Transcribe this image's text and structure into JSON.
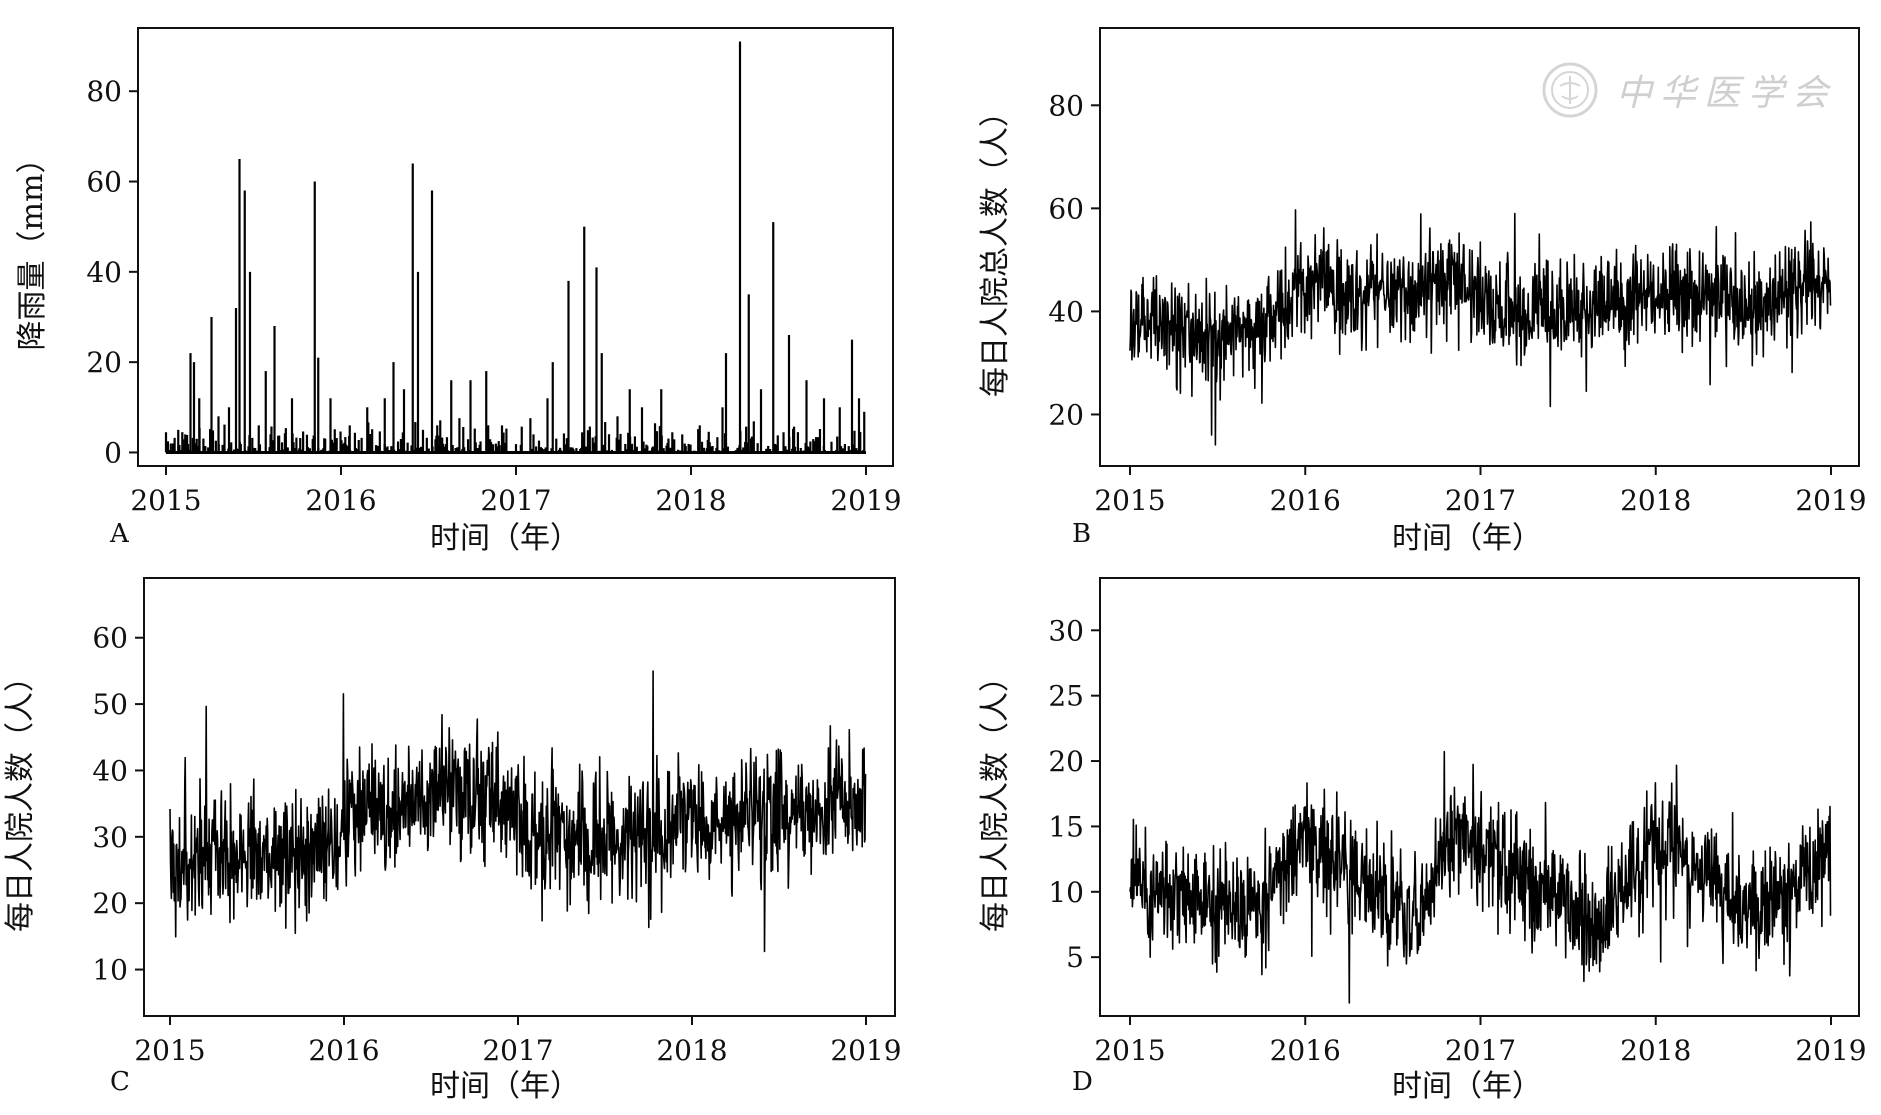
{
  "watermark": {
    "text": "中华医学会"
  },
  "chart_data": [
    {
      "panel": "A",
      "type": "line",
      "ylabel": "降雨量（mm）",
      "xlabel": "时间（年）",
      "x_ticks": [
        "2015",
        "2016",
        "2017",
        "2018",
        "2019"
      ],
      "y_ticks": [
        0,
        20,
        40,
        60,
        80
      ],
      "xlim": [
        2015,
        2019
      ],
      "ylim": [
        -3,
        94
      ],
      "series": [
        {
          "values": [
            [
              2015.04,
              2
            ],
            [
              2015.07,
              5
            ],
            [
              2015.11,
              4
            ],
            [
              2015.14,
              22
            ],
            [
              2015.16,
              20
            ],
            [
              2015.19,
              12
            ],
            [
              2015.26,
              30
            ],
            [
              2015.3,
              8
            ],
            [
              2015.36,
              10
            ],
            [
              2015.4,
              32
            ],
            [
              2015.42,
              65
            ],
            [
              2015.45,
              58
            ],
            [
              2015.48,
              40
            ],
            [
              2015.53,
              6
            ],
            [
              2015.57,
              18
            ],
            [
              2015.62,
              28
            ],
            [
              2015.72,
              12
            ],
            [
              2015.85,
              60
            ],
            [
              2015.87,
              21
            ],
            [
              2015.94,
              12
            ],
            [
              2016.05,
              6
            ],
            [
              2016.15,
              10
            ],
            [
              2016.25,
              12
            ],
            [
              2016.3,
              20
            ],
            [
              2016.36,
              14
            ],
            [
              2016.41,
              64
            ],
            [
              2016.44,
              40
            ],
            [
              2016.52,
              58
            ],
            [
              2016.55,
              6
            ],
            [
              2016.63,
              16
            ],
            [
              2016.74,
              16
            ],
            [
              2016.83,
              18
            ],
            [
              2016.92,
              6
            ],
            [
              2017.1,
              4
            ],
            [
              2017.18,
              12
            ],
            [
              2017.21,
              20
            ],
            [
              2017.3,
              38
            ],
            [
              2017.39,
              50
            ],
            [
              2017.46,
              41
            ],
            [
              2017.49,
              22
            ],
            [
              2017.58,
              8
            ],
            [
              2017.65,
              14
            ],
            [
              2017.72,
              10
            ],
            [
              2017.83,
              14
            ],
            [
              2017.95,
              4
            ],
            [
              2018.05,
              6
            ],
            [
              2018.18,
              10
            ],
            [
              2018.2,
              22
            ],
            [
              2018.28,
              91
            ],
            [
              2018.33,
              35
            ],
            [
              2018.4,
              14
            ],
            [
              2018.47,
              51
            ],
            [
              2018.56,
              26
            ],
            [
              2018.66,
              16
            ],
            [
              2018.76,
              12
            ],
            [
              2018.85,
              10
            ],
            [
              2018.92,
              25
            ],
            [
              2018.96,
              12
            ],
            [
              2018.99,
              9
            ]
          ]
        }
      ]
    },
    {
      "panel": "B",
      "type": "line",
      "ylabel": "每日人院总人数（人）",
      "xlabel": "时间（年）",
      "x_ticks": [
        "2015",
        "2016",
        "2017",
        "2018",
        "2019"
      ],
      "y_ticks": [
        20,
        40,
        60,
        80
      ],
      "xlim": [
        2015,
        2019
      ],
      "ylim": [
        10,
        95
      ],
      "series": [
        {
          "values": [
            [
              2015.0,
              36
            ],
            [
              2015.1,
              38
            ],
            [
              2015.2,
              38
            ],
            [
              2015.3,
              36
            ],
            [
              2015.4,
              35
            ],
            [
              2015.5,
              35
            ],
            [
              2015.6,
              35
            ],
            [
              2015.7,
              37
            ],
            [
              2015.8,
              39
            ],
            [
              2015.9,
              40
            ],
            [
              2016.0,
              45
            ],
            [
              2016.1,
              46
            ],
            [
              2016.2,
              45
            ],
            [
              2016.3,
              44
            ],
            [
              2016.4,
              45
            ],
            [
              2016.5,
              44
            ],
            [
              2016.6,
              43
            ],
            [
              2016.7,
              44
            ],
            [
              2016.8,
              46
            ],
            [
              2016.9,
              47
            ],
            [
              2017.0,
              42
            ],
            [
              2017.1,
              40
            ],
            [
              2017.2,
              40
            ],
            [
              2017.3,
              41
            ],
            [
              2017.4,
              40
            ],
            [
              2017.5,
              40
            ],
            [
              2017.6,
              40
            ],
            [
              2017.7,
              41
            ],
            [
              2017.8,
              41
            ],
            [
              2017.9,
              42
            ],
            [
              2018.0,
              44
            ],
            [
              2018.1,
              44
            ],
            [
              2018.2,
              44
            ],
            [
              2018.3,
              43
            ],
            [
              2018.4,
              42
            ],
            [
              2018.5,
              41
            ],
            [
              2018.6,
              41
            ],
            [
              2018.7,
              42
            ],
            [
              2018.8,
              45
            ],
            [
              2018.9,
              47
            ],
            [
              2019.0,
              45
            ]
          ]
        }
      ]
    },
    {
      "panel": "C",
      "type": "line",
      "ylabel": "每日人院人数（人）",
      "xlabel": "时间（年）",
      "x_ticks": [
        "2015",
        "2016",
        "2017",
        "2018",
        "2019"
      ],
      "y_ticks": [
        10,
        20,
        30,
        40,
        50,
        60
      ],
      "xlim": [
        2015,
        2019
      ],
      "ylim": [
        3,
        69
      ],
      "series": [
        {
          "values": [
            [
              2015.0,
              24
            ],
            [
              2015.1,
              26
            ],
            [
              2015.2,
              28
            ],
            [
              2015.3,
              28
            ],
            [
              2015.4,
              28
            ],
            [
              2015.5,
              28
            ],
            [
              2015.6,
              27
            ],
            [
              2015.7,
              27
            ],
            [
              2015.8,
              27
            ],
            [
              2015.9,
              29
            ],
            [
              2016.0,
              32
            ],
            [
              2016.1,
              33
            ],
            [
              2016.2,
              34
            ],
            [
              2016.3,
              35
            ],
            [
              2016.4,
              36
            ],
            [
              2016.5,
              37
            ],
            [
              2016.6,
              36
            ],
            [
              2016.7,
              36
            ],
            [
              2016.8,
              37
            ],
            [
              2016.9,
              36
            ],
            [
              2017.0,
              32
            ],
            [
              2017.1,
              30
            ],
            [
              2017.2,
              30
            ],
            [
              2017.3,
              30
            ],
            [
              2017.4,
              29
            ],
            [
              2017.5,
              29
            ],
            [
              2017.6,
              30
            ],
            [
              2017.7,
              30
            ],
            [
              2017.8,
              30
            ],
            [
              2017.9,
              31
            ],
            [
              2018.0,
              32
            ],
            [
              2018.1,
              32
            ],
            [
              2018.2,
              33
            ],
            [
              2018.3,
              33
            ],
            [
              2018.4,
              33
            ],
            [
              2018.5,
              33
            ],
            [
              2018.6,
              33
            ],
            [
              2018.7,
              33
            ],
            [
              2018.8,
              35
            ],
            [
              2018.9,
              36
            ],
            [
              2019.0,
              34
            ]
          ]
        }
      ]
    },
    {
      "panel": "D",
      "type": "line",
      "ylabel": "每日人院人数（人）",
      "xlabel": "时间（年）",
      "x_ticks": [
        "2015",
        "2016",
        "2017",
        "2018",
        "2019"
      ],
      "y_ticks": [
        5,
        10,
        15,
        20,
        25,
        30
      ],
      "xlim": [
        2015,
        2019
      ],
      "ylim": [
        0.5,
        34
      ],
      "series": [
        {
          "values": [
            [
              2015.0,
              11
            ],
            [
              2015.1,
              10
            ],
            [
              2015.2,
              10
            ],
            [
              2015.3,
              9
            ],
            [
              2015.4,
              9
            ],
            [
              2015.5,
              9
            ],
            [
              2015.6,
              9
            ],
            [
              2015.7,
              9
            ],
            [
              2015.8,
              10
            ],
            [
              2015.9,
              12
            ],
            [
              2016.0,
              14
            ],
            [
              2016.1,
              13
            ],
            [
              2016.2,
              12
            ],
            [
              2016.3,
              11
            ],
            [
              2016.4,
              10
            ],
            [
              2016.5,
              9
            ],
            [
              2016.6,
              8
            ],
            [
              2016.7,
              9
            ],
            [
              2016.8,
              13
            ],
            [
              2016.9,
              15
            ],
            [
              2017.0,
              14
            ],
            [
              2017.1,
              12
            ],
            [
              2017.2,
              11
            ],
            [
              2017.3,
              10
            ],
            [
              2017.4,
              10
            ],
            [
              2017.5,
              9
            ],
            [
              2017.6,
              8
            ],
            [
              2017.7,
              8
            ],
            [
              2017.8,
              10
            ],
            [
              2017.9,
              12
            ],
            [
              2018.0,
              14
            ],
            [
              2018.1,
              13
            ],
            [
              2018.2,
              12
            ],
            [
              2018.3,
              11
            ],
            [
              2018.4,
              10
            ],
            [
              2018.5,
              9
            ],
            [
              2018.6,
              9
            ],
            [
              2018.7,
              9
            ],
            [
              2018.8,
              10
            ],
            [
              2018.9,
              12
            ],
            [
              2019.0,
              13
            ]
          ]
        }
      ]
    }
  ]
}
